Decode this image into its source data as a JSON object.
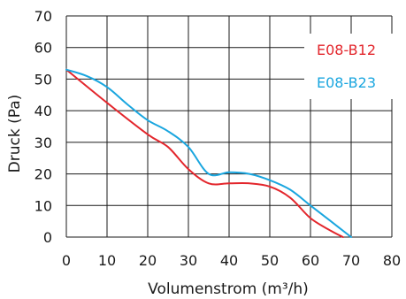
{
  "chart_data": {
    "type": "line",
    "title": "",
    "xlabel": "Volumenstrom (m³/h)",
    "ylabel": "Druck (Pa)",
    "xlim": [
      0,
      80
    ],
    "ylim": [
      0,
      70
    ],
    "xticks": [
      0,
      10,
      20,
      30,
      40,
      50,
      60,
      70,
      80
    ],
    "yticks": [
      0,
      10,
      20,
      30,
      40,
      50,
      60,
      70
    ],
    "grid": true,
    "legend": "top-right",
    "series": [
      {
        "name": "E08-B12",
        "color": "#e3262c",
        "points": [
          [
            0,
            53
          ],
          [
            10,
            42.5
          ],
          [
            20,
            32.5
          ],
          [
            25,
            28.5
          ],
          [
            30,
            21.5
          ],
          [
            35,
            17
          ],
          [
            40,
            17
          ],
          [
            45,
            17
          ],
          [
            50,
            16
          ],
          [
            55,
            12.5
          ],
          [
            60,
            6
          ],
          [
            65,
            2
          ],
          [
            68,
            0
          ]
        ]
      },
      {
        "name": "E08-B23",
        "color": "#1aa6df",
        "points": [
          [
            0,
            53
          ],
          [
            5,
            51
          ],
          [
            10,
            47.5
          ],
          [
            15,
            42
          ],
          [
            20,
            37
          ],
          [
            25,
            33.5
          ],
          [
            30,
            28.5
          ],
          [
            35,
            20
          ],
          [
            40,
            20.5
          ],
          [
            45,
            20
          ],
          [
            50,
            18
          ],
          [
            55,
            15
          ],
          [
            60,
            10
          ],
          [
            65,
            5
          ],
          [
            70,
            0
          ]
        ]
      }
    ]
  }
}
